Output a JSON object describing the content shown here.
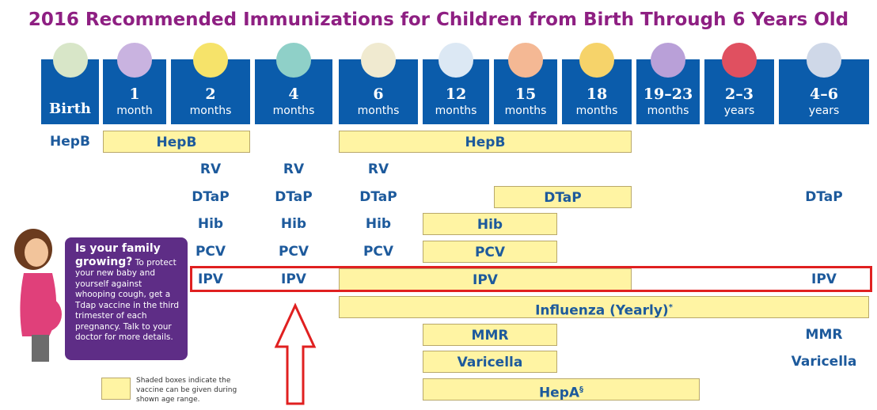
{
  "header": {
    "title": "2016 Recommended Immunizations for Children from Birth Through 6 Years Old"
  },
  "ages": [
    {
      "top": "Birth"
    },
    {
      "top": "1",
      "bottom": "month"
    },
    {
      "top": "2",
      "bottom": "months"
    },
    {
      "top": "4",
      "bottom": "months"
    },
    {
      "top": "6",
      "bottom": "months"
    },
    {
      "top": "12",
      "bottom": "months"
    },
    {
      "top": "15",
      "bottom": "months"
    },
    {
      "top": "18",
      "bottom": "months"
    },
    {
      "top": "19–23",
      "bottom": "months"
    },
    {
      "top": "2–3",
      "bottom": "years"
    },
    {
      "top": "4–6",
      "bottom": "years"
    }
  ],
  "rows": [
    [
      {
        "text": "HepB"
      },
      {
        "text": "HepB"
      },
      {
        "text": "HepB"
      }
    ],
    [
      {
        "text": "RV"
      },
      {
        "text": "RV"
      },
      {
        "text": "RV"
      }
    ],
    [
      {
        "text": "DTaP"
      },
      {
        "text": "DTaP"
      },
      {
        "text": "DTaP"
      },
      {
        "text": "DTaP"
      },
      {
        "text": "DTaP"
      }
    ],
    [
      {
        "text": "Hib"
      },
      {
        "text": "Hib"
      },
      {
        "text": "Hib"
      },
      {
        "text": "Hib"
      }
    ],
    [
      {
        "text": "PCV"
      },
      {
        "text": "PCV"
      },
      {
        "text": "PCV"
      },
      {
        "text": "PCV"
      }
    ],
    [
      {
        "text": "IPV"
      },
      {
        "text": "IPV"
      },
      {
        "text": "IPV"
      },
      {
        "text": "IPV"
      }
    ],
    [
      {
        "text": "Influenza (Yearly)",
        "sup": "*"
      }
    ],
    [
      {
        "text": "MMR"
      },
      {
        "text": "MMR"
      }
    ],
    [
      {
        "text": "Varicella"
      },
      {
        "text": "Varicella"
      }
    ],
    [
      {
        "text": "HepA",
        "sup": "§"
      }
    ]
  ],
  "callout": {
    "heading": "Is your family growing?",
    "body": "To protect your new baby and yourself against whooping cough, get a Tdap vaccine in the third trimester of each pregnancy. Talk to your doctor for more details."
  },
  "legend": {
    "text": "Shaded boxes indicate the vaccine can be given during shown age range."
  }
}
